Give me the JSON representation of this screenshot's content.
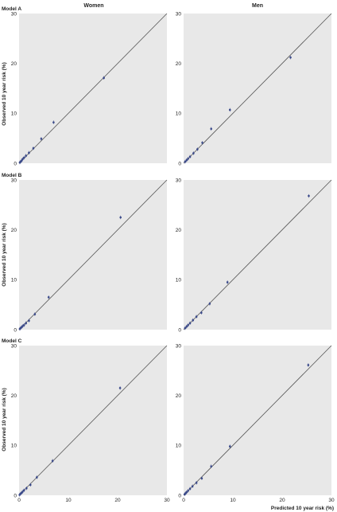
{
  "figure": {
    "column_titles": [
      "Women",
      "Men"
    ],
    "row_titles": [
      "Model A",
      "Model B",
      "Model C"
    ],
    "xlabel": "Predicted 10 year risk (%)",
    "ylabel": "Observed 10 year risk (%)"
  },
  "colors": {
    "panel_bg": "#e8e8e8",
    "points": "#3b4a8a",
    "diagonal": "#555555"
  },
  "chart_data": [
    {
      "type": "scatter",
      "row": "Model A",
      "column": "Women",
      "xlim": [
        0,
        30
      ],
      "ylim": [
        0,
        30
      ],
      "xticks": [
        "0",
        "10",
        "20",
        "30"
      ],
      "yticks": [
        "0",
        "10",
        "20",
        "30"
      ],
      "grid": false,
      "reference_line": "y = x",
      "x": [
        0.15,
        0.3,
        0.5,
        0.7,
        1.0,
        1.4,
        2.0,
        2.9,
        4.5,
        7.0,
        17.2
      ],
      "y": [
        0.15,
        0.3,
        0.5,
        0.8,
        1.1,
        1.5,
        2.1,
        3.0,
        4.9,
        8.2,
        17.1
      ]
    },
    {
      "type": "scatter",
      "row": "Model A",
      "column": "Men",
      "xlim": [
        0,
        30
      ],
      "ylim": [
        0,
        30
      ],
      "xticks": [
        "0",
        "10",
        "20",
        "30"
      ],
      "yticks": [
        "0",
        "10",
        "20",
        "30"
      ],
      "grid": false,
      "reference_line": "y = x",
      "x": [
        0.3,
        0.6,
        0.9,
        1.3,
        2.0,
        2.8,
        3.8,
        5.6,
        9.4,
        21.7
      ],
      "y": [
        0.3,
        0.6,
        0.9,
        1.3,
        2.0,
        2.8,
        4.1,
        6.9,
        10.7,
        21.2
      ]
    },
    {
      "type": "scatter",
      "row": "Model B",
      "column": "Women",
      "xlim": [
        0,
        30
      ],
      "ylim": [
        0,
        30
      ],
      "xticks": [
        "0",
        "10",
        "20",
        "30"
      ],
      "yticks": [
        "0",
        "10",
        "20",
        "30"
      ],
      "grid": false,
      "reference_line": "y = x",
      "x": [
        0.15,
        0.3,
        0.5,
        0.7,
        1.0,
        1.4,
        2.0,
        3.2,
        6.0,
        20.6
      ],
      "y": [
        0.15,
        0.3,
        0.5,
        0.7,
        0.9,
        1.3,
        1.8,
        3.1,
        6.5,
        22.5
      ]
    },
    {
      "type": "scatter",
      "row": "Model B",
      "column": "Men",
      "xlim": [
        0,
        30
      ],
      "ylim": [
        0,
        30
      ],
      "xticks": [
        "0",
        "10",
        "20",
        "30"
      ],
      "yticks": [
        "0",
        "10",
        "20",
        "30"
      ],
      "grid": false,
      "reference_line": "y = x",
      "x": [
        0.3,
        0.6,
        0.9,
        1.3,
        1.9,
        2.6,
        3.6,
        5.3,
        8.9,
        25.4
      ],
      "y": [
        0.3,
        0.6,
        0.9,
        1.3,
        1.9,
        2.6,
        3.4,
        5.2,
        9.5,
        26.8
      ]
    },
    {
      "type": "scatter",
      "row": "Model C",
      "column": "Women",
      "xlim": [
        0,
        30
      ],
      "ylim": [
        0,
        30
      ],
      "xticks": [
        "0",
        "10",
        "20",
        "30"
      ],
      "yticks": [
        "0",
        "10",
        "20",
        "30"
      ],
      "grid": false,
      "reference_line": "y = x",
      "x": [
        0.1,
        0.3,
        0.5,
        0.7,
        1.0,
        1.5,
        2.3,
        3.6,
        6.8,
        20.5
      ],
      "y": [
        0.1,
        0.3,
        0.5,
        0.7,
        1.0,
        1.4,
        2.1,
        3.6,
        6.9,
        21.5
      ]
    },
    {
      "type": "scatter",
      "row": "Model C",
      "column": "Men",
      "xlim": [
        0,
        30
      ],
      "ylim": [
        0,
        30
      ],
      "xticks": [
        "0",
        "10",
        "20",
        "30"
      ],
      "yticks": [
        "0",
        "10",
        "20",
        "30"
      ],
      "grid": false,
      "reference_line": "y = x",
      "x": [
        0.2,
        0.4,
        0.6,
        0.9,
        1.3,
        1.8,
        2.6,
        3.7,
        5.6,
        9.4,
        25.3
      ],
      "y": [
        0.2,
        0.4,
        0.6,
        0.9,
        1.3,
        1.8,
        2.5,
        3.4,
        5.8,
        9.8,
        26.1
      ]
    }
  ]
}
